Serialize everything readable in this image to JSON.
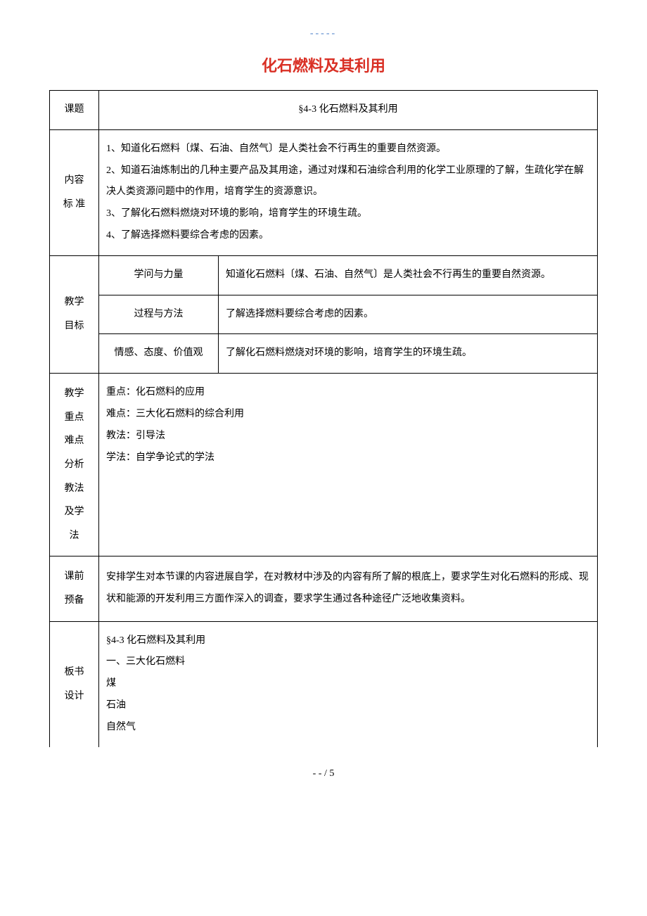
{
  "header_dashes": "-----",
  "doc_title": "化石燃料及其利用",
  "labels": {
    "topic": "课题",
    "content_standard": "内容标 准",
    "teaching_goals": "教学目标",
    "key_difficult": "教学重点难点分析教法及学法",
    "pre_class": "课前预备",
    "board_design": "板书设计"
  },
  "topic_value": "§4-3 化石燃料及其利用",
  "content_standards": {
    "line1": "1、知道化石燃料〔煤、石油、自然气〕是人类社会不行再生的重要自然资源。",
    "line2": "2、知道石油炼制出的几种主要产品及其用途，通过对煤和石油综合利用的化学工业原理的了解，生疏化学在解决人类资源问题中的作用，培育学生的资源意识。",
    "line3": "3、了解化石燃料燃烧对环境的影响，培育学生的环境生疏。",
    "line4": "4、了解选择燃料要综合考虑的因素。"
  },
  "teaching_goals": {
    "row1_label": "学问与力量",
    "row1_value": "知道化石燃料〔煤、石油、自然气〕是人类社会不行再生的重要自然资源。",
    "row2_label": "过程与方法",
    "row2_value": "了解选择燃料要综合考虑的因素。",
    "row3_label": "情感、态度、价值观",
    "row3_value": "了解化石燃料燃烧对环境的影响，培育学生的环境生疏。"
  },
  "key_difficult": {
    "line1": "重点：化石燃料的应用",
    "line2": "难点：三大化石燃料的综合利用",
    "line3": "教法：引导法",
    "line4": "学法：自学争论式的学法"
  },
  "pre_class_value": "安排学生对本节课的内容进展自学，在对教材中涉及的内容有所了解的根底上，要求学生对化石燃料的形成、现状和能源的开发利用三方面作深入的调查，要求学生通过各种途径广泛地收集资料。",
  "board_design": {
    "line1": "§4-3 化石燃料及其利用",
    "line2": "一、三大化石燃料",
    "line3": "煤",
    "line4": "石油",
    "line5": "自然气"
  },
  "page_number": "- - / 5"
}
